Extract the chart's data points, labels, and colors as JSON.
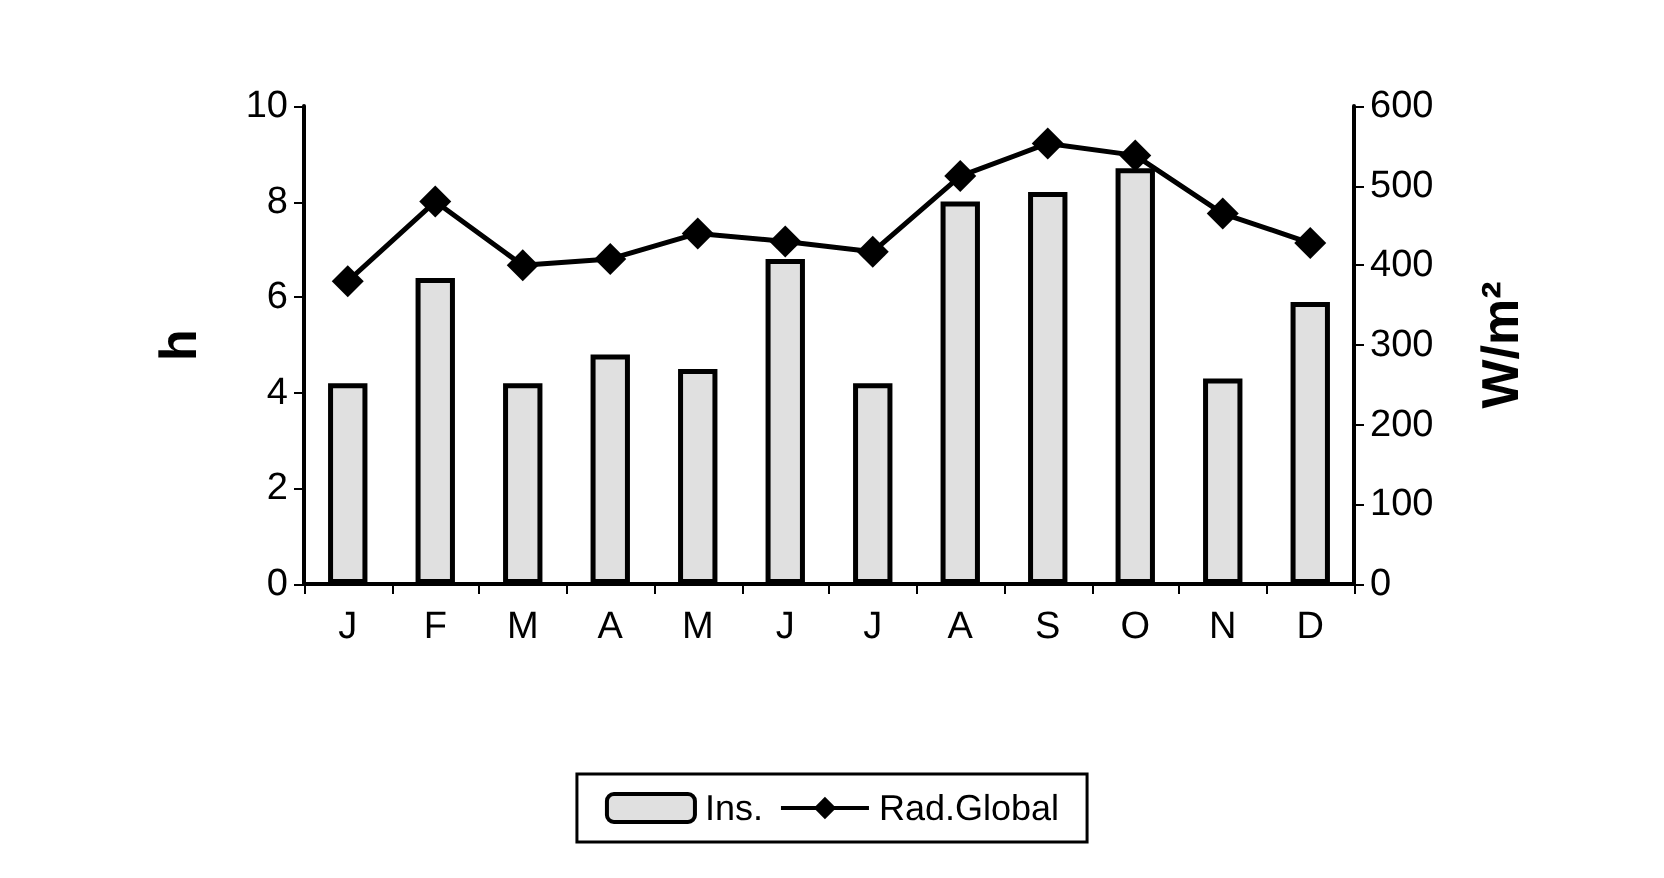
{
  "chart_data": {
    "type": "bar",
    "categories": [
      "J",
      "F",
      "M",
      "A",
      "M",
      "J",
      "J",
      "A",
      "S",
      "O",
      "N",
      "D"
    ],
    "series": [
      {
        "name": "Ins.",
        "color": "#e0e0e0",
        "values": [
          4.2,
          6.4,
          4.2,
          4.8,
          4.5,
          6.8,
          4.2,
          8.0,
          8.2,
          8.7,
          4.3,
          5.9
        ]
      },
      {
        "name": "Rad.Global",
        "type": "line",
        "axis": "y2",
        "color": "#000000",
        "values": [
          380,
          480,
          400,
          408,
          440,
          430,
          417,
          512,
          553,
          538,
          465,
          428
        ]
      }
    ],
    "ylabel": "h",
    "y2label": "W/m²",
    "ylim": [
      0,
      10
    ],
    "yticks": [
      0,
      2,
      4,
      6,
      8,
      10
    ],
    "y2lim": [
      0,
      600
    ],
    "y2ticks": [
      0,
      100,
      200,
      300,
      400,
      500,
      600
    ],
    "legend": "bottom",
    "grid": false,
    "marker": "diamond",
    "line_style": "solid"
  }
}
